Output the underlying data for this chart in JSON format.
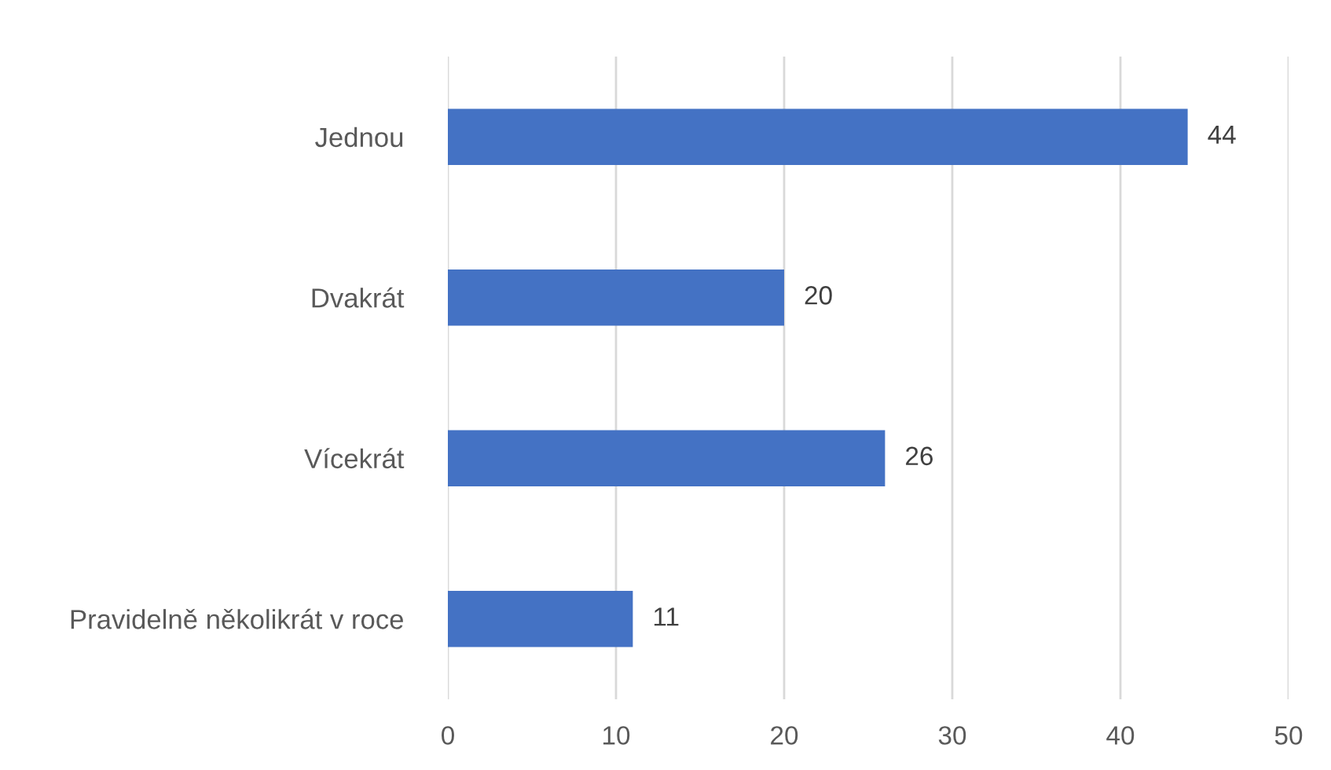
{
  "chart_data": {
    "type": "bar",
    "orientation": "horizontal",
    "categories": [
      "Jednou",
      "Dvakrát",
      "Vícekrát",
      "Pravidelně několikrát v roce"
    ],
    "values": [
      44,
      20,
      26,
      11
    ],
    "color": "#4472c4",
    "xlim": [
      0,
      50
    ],
    "xticks": [
      0,
      10,
      20,
      30,
      40,
      50
    ],
    "grid": "x",
    "data_labels": true
  }
}
